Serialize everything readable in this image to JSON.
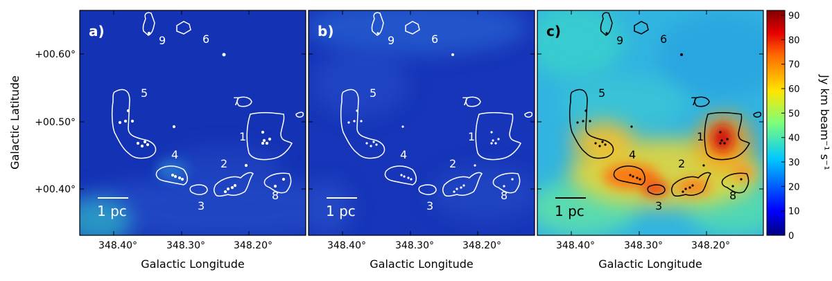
{
  "figure": {
    "xlabel": "Galactic Longitude",
    "ylabel": "Galactic Latitude",
    "colorbar_label": "Jy km beam⁻¹ s⁻¹",
    "colorbar_range": [
      0,
      92
    ],
    "colorbar_ticks": [
      "0",
      "10",
      "20",
      "30",
      "40",
      "50",
      "60",
      "70",
      "80",
      "90"
    ],
    "x_ticks": [
      "348.40°",
      "348.30°",
      "348.20°"
    ],
    "y_ticks": [
      "+00.60°",
      "+00.50°",
      "+00.40°"
    ],
    "scalebar_label": "1 pc",
    "colors": {
      "map_background": "#1432b4",
      "contour_light": "#ffffff",
      "contour_dark": "#000000"
    }
  },
  "chart_data": [
    {
      "type": "heatmap",
      "panel_label": "a)",
      "xlabel": "Galactic Longitude",
      "ylabel": "Galactic Latitude",
      "xlim": [
        348.45,
        348.115
      ],
      "ylim": [
        0.345,
        0.665
      ],
      "value_range_visible": "mostly 0–20 Jy km beam⁻¹ s⁻¹, brighter (~30) near region 4 and lower-left corner",
      "clump_labels": [
        "9",
        "6",
        "5",
        "7",
        "1",
        "4",
        "2",
        "3",
        "8"
      ]
    },
    {
      "type": "heatmap",
      "panel_label": "b)",
      "xlabel": "Galactic Longitude",
      "xlim": [
        348.45,
        348.115
      ],
      "ylim": [
        0.345,
        0.665
      ],
      "value_range_visible": "mostly 5–20 Jy km beam⁻¹ s⁻¹",
      "clump_labels": [
        "9",
        "6",
        "5",
        "7",
        "1",
        "4",
        "2",
        "3",
        "8"
      ]
    },
    {
      "type": "heatmap",
      "panel_label": "c)",
      "xlabel": "Galactic Longitude",
      "xlim": [
        348.45,
        348.115
      ],
      "ylim": [
        0.345,
        0.665
      ],
      "value_range_visible": "20–92 Jy km beam⁻¹ s⁻¹, peaks (~90) at clumps 1, 4, 3",
      "clump_labels": [
        "9",
        "6",
        "5",
        "7",
        "1",
        "4",
        "2",
        "3",
        "8"
      ]
    }
  ]
}
